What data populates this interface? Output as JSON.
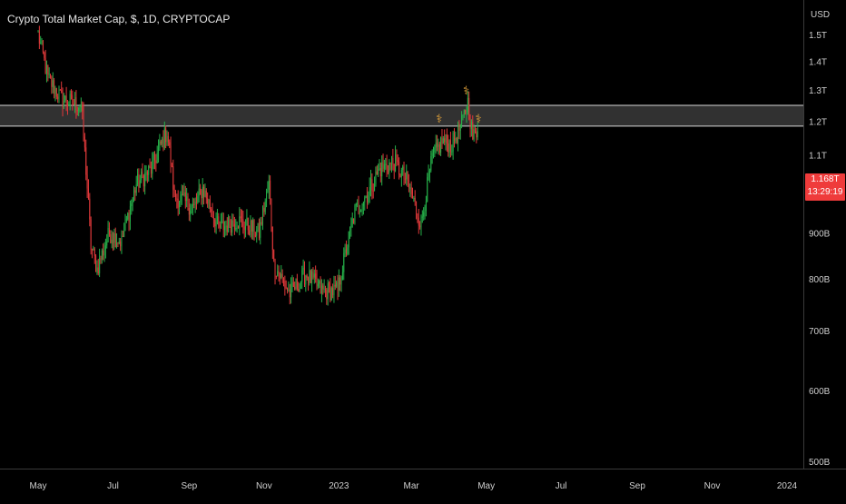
{
  "chart_data": {
    "type": "candlestick",
    "title": "Crypto Total Market Cap, $, 1D, CRYPTOCAP",
    "currency_label": "USD",
    "x_range": [
      "2022-05-01",
      "2024-01-31"
    ],
    "y_range_billions": [
      490,
      1560
    ],
    "y_ticks": [
      {
        "value": 1500,
        "label": "1.5T"
      },
      {
        "value": 1400,
        "label": "1.4T"
      },
      {
        "value": 1300,
        "label": "1.3T"
      },
      {
        "value": 1200,
        "label": "1.2T"
      },
      {
        "value": 1100,
        "label": "1.1T"
      },
      {
        "value": 1000,
        "label": "1T"
      },
      {
        "value": 900,
        "label": "900B"
      },
      {
        "value": 800,
        "label": "800B"
      },
      {
        "value": 700,
        "label": "700B"
      },
      {
        "value": 600,
        "label": "600B"
      },
      {
        "value": 500,
        "label": "500B"
      }
    ],
    "x_ticks": [
      {
        "date": "2022-05-01",
        "label": "May"
      },
      {
        "date": "2022-07-01",
        "label": "Jul"
      },
      {
        "date": "2022-09-01",
        "label": "Sep"
      },
      {
        "date": "2022-11-01",
        "label": "Nov"
      },
      {
        "date": "2023-01-01",
        "label": "2023"
      },
      {
        "date": "2023-03-01",
        "label": "Mar"
      },
      {
        "date": "2023-05-01",
        "label": "May"
      },
      {
        "date": "2023-07-01",
        "label": "Jul"
      },
      {
        "date": "2023-09-01",
        "label": "Sep"
      },
      {
        "date": "2023-11-01",
        "label": "Nov"
      },
      {
        "date": "2024-01-01",
        "label": "2024"
      }
    ],
    "resistance_zone_billions": [
      1185,
      1250
    ],
    "current_price": {
      "label": "1.168T",
      "countdown": "13:29:19",
      "value": 1168
    },
    "anchors": [
      {
        "date": "2022-05-01",
        "value": 1500
      },
      {
        "date": "2022-05-09",
        "value": 1340
      },
      {
        "date": "2022-05-20",
        "value": 1270
      },
      {
        "date": "2022-06-05",
        "value": 1250
      },
      {
        "date": "2022-06-13",
        "value": 870
      },
      {
        "date": "2022-06-18",
        "value": 820
      },
      {
        "date": "2022-06-28",
        "value": 900
      },
      {
        "date": "2022-07-08",
        "value": 880
      },
      {
        "date": "2022-07-20",
        "value": 1020
      },
      {
        "date": "2022-08-01",
        "value": 1060
      },
      {
        "date": "2022-08-14",
        "value": 1170
      },
      {
        "date": "2022-08-20",
        "value": 990
      },
      {
        "date": "2022-09-05",
        "value": 960
      },
      {
        "date": "2022-09-12",
        "value": 1010
      },
      {
        "date": "2022-09-25",
        "value": 910
      },
      {
        "date": "2022-10-10",
        "value": 930
      },
      {
        "date": "2022-10-28",
        "value": 900
      },
      {
        "date": "2022-11-05",
        "value": 1020
      },
      {
        "date": "2022-11-09",
        "value": 830
      },
      {
        "date": "2022-11-22",
        "value": 770
      },
      {
        "date": "2022-12-05",
        "value": 810
      },
      {
        "date": "2022-12-18",
        "value": 775
      },
      {
        "date": "2022-12-31",
        "value": 775
      },
      {
        "date": "2023-01-14",
        "value": 950
      },
      {
        "date": "2023-01-25",
        "value": 1000
      },
      {
        "date": "2023-02-03",
        "value": 1060
      },
      {
        "date": "2023-02-15",
        "value": 1080
      },
      {
        "date": "2023-02-25",
        "value": 1030
      },
      {
        "date": "2023-03-09",
        "value": 920
      },
      {
        "date": "2023-03-18",
        "value": 1090
      },
      {
        "date": "2023-03-26",
        "value": 1140
      },
      {
        "date": "2023-04-03",
        "value": 1130
      },
      {
        "date": "2023-04-11",
        "value": 1190
      },
      {
        "date": "2023-04-16",
        "value": 1260
      },
      {
        "date": "2023-04-20",
        "value": 1150
      },
      {
        "date": "2023-04-24",
        "value": 1170
      }
    ]
  }
}
